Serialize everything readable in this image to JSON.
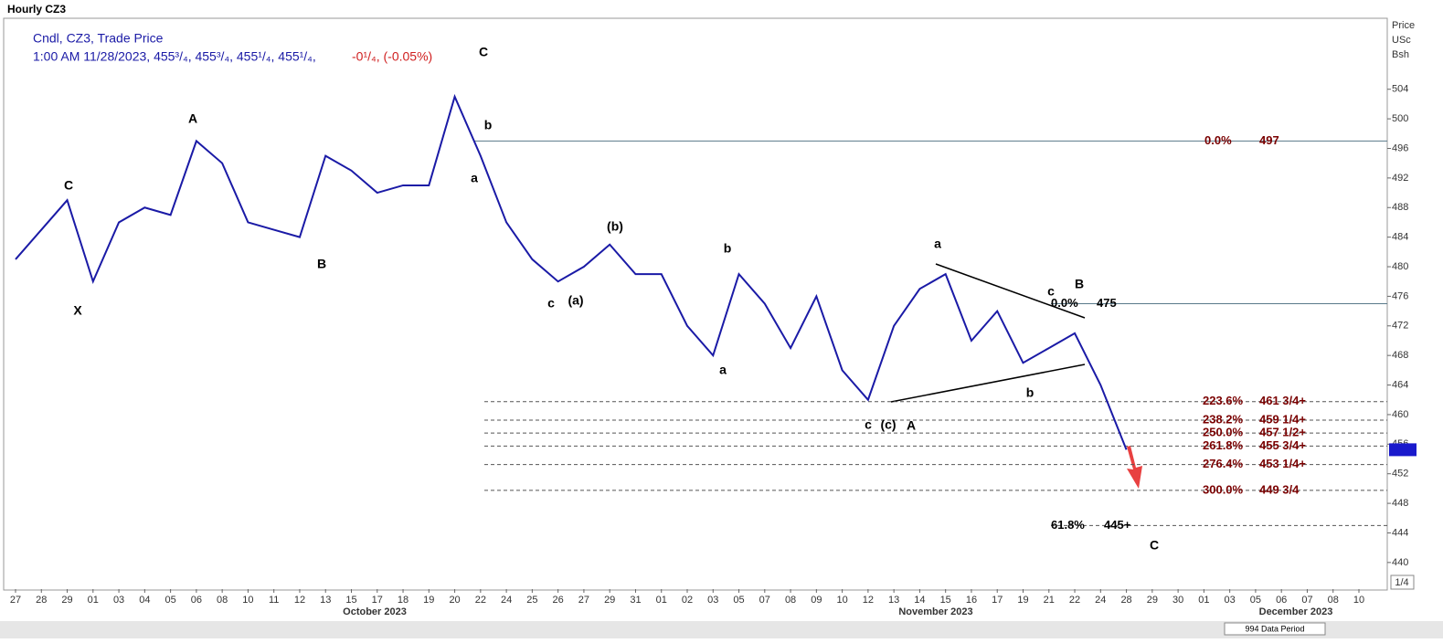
{
  "chart_data": {
    "type": "line",
    "title": "Hourly CZ3",
    "legend_line1": "Cndl, CZ3, Trade Price",
    "legend_line2": "1:00 AM 11/28/2023, 455³/₄, 455³/₄, 455¹/₄, 455¹/₄,",
    "legend_change": "-0¹/₄, (-0.05%)",
    "y_axis_label": [
      "Price",
      "USc",
      "Bsh"
    ],
    "categories": [
      "27",
      "28",
      "29",
      "01",
      "03",
      "04",
      "05",
      "06",
      "08",
      "10",
      "11",
      "12",
      "13",
      "15",
      "17",
      "18",
      "19",
      "20",
      "22",
      "24",
      "25",
      "26",
      "27",
      "29",
      "31",
      "01",
      "02",
      "03",
      "05",
      "07",
      "08",
      "09",
      "10",
      "12",
      "13",
      "14",
      "15",
      "16",
      "17",
      "19",
      "21",
      "22",
      "24",
      "28",
      "29",
      "30",
      "01",
      "03",
      "05",
      "06",
      "07",
      "08",
      "10"
    ],
    "months": [
      "October 2023",
      "November 2023",
      "December 2023"
    ],
    "series": [
      {
        "name": "CZ3",
        "color": "#1a1aa6",
        "values": [
          481,
          485,
          489,
          478,
          486,
          488,
          487,
          497,
          494,
          486,
          485,
          484,
          495,
          493,
          490,
          491,
          491,
          503,
          495,
          486,
          481,
          478,
          480,
          483,
          479,
          479,
          472,
          468,
          479,
          475,
          469,
          476,
          466,
          462,
          472,
          477,
          479,
          470,
          474,
          467,
          469,
          471,
          464,
          455.25,
          null,
          null,
          null,
          null,
          null,
          null,
          null,
          null,
          null
        ]
      }
    ],
    "last_price": 455.25,
    "ylim": [
      436.4,
      513.6
    ],
    "yticks": [
      440,
      444,
      448,
      452,
      456,
      460,
      464,
      468,
      472,
      476,
      480,
      484,
      488,
      492,
      496,
      500,
      504
    ],
    "fib_levels": [
      {
        "pct": "0.0%",
        "label": "497",
        "value": 497,
        "color": "#7a0000"
      },
      {
        "pct": "0.0%",
        "label": "475",
        "value": 475,
        "color": "#000000"
      },
      {
        "pct": "223.6%",
        "label": "461 3/4+",
        "value": 461.75,
        "color": "#7a0000"
      },
      {
        "pct": "238.2%",
        "label": "459 1/4+",
        "value": 459.25,
        "color": "#7a0000"
      },
      {
        "pct": "250.0%",
        "label": "457 1/2+",
        "value": 457.5,
        "color": "#7a0000"
      },
      {
        "pct": "261.8%",
        "label": "455 3/4+",
        "value": 455.75,
        "color": "#7a0000"
      },
      {
        "pct": "276.4%",
        "label": "453 1/4+",
        "value": 453.25,
        "color": "#7a0000"
      },
      {
        "pct": "300.0%",
        "label": "449 3/4",
        "value": 449.75,
        "color": "#7a0000"
      },
      {
        "pct": "61.8%",
        "label": "445+",
        "value": 445,
        "color": "#000000"
      }
    ],
    "wave_labels": [
      "C",
      "X",
      "A",
      "B",
      "C",
      "b",
      "a",
      "c",
      "(a)",
      "(b)",
      "a",
      "b",
      "c",
      "(c)",
      "A",
      "a",
      "b",
      "c",
      "B",
      "C"
    ],
    "footer": "994 Data Period",
    "zoom": "1/4"
  }
}
